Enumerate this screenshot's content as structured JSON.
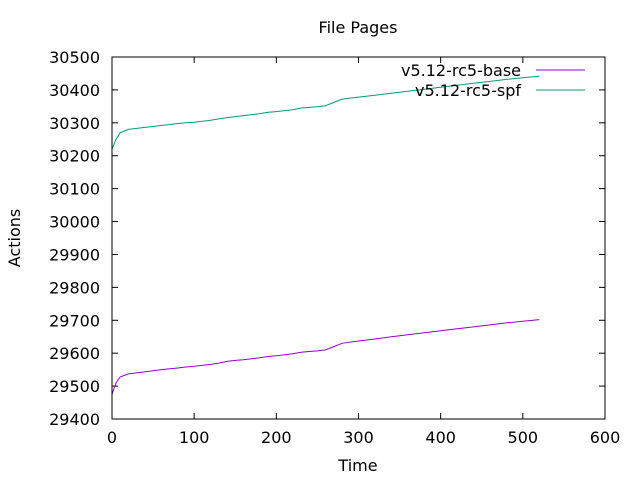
{
  "chart_data": {
    "type": "line",
    "title": "File Pages",
    "xlabel": "Time",
    "ylabel": "Actions",
    "xlim": [
      0,
      600
    ],
    "ylim": [
      29400,
      30500
    ],
    "xticks": [
      "0",
      "100",
      "200",
      "300",
      "400",
      "500",
      "600"
    ],
    "yticks": [
      "29400",
      "29500",
      "29600",
      "29700",
      "29800",
      "29900",
      "30000",
      "30100",
      "30200",
      "30300",
      "30400",
      "30500"
    ],
    "grid": false,
    "legend_position": "top-right",
    "series": [
      {
        "name": "v5.12-rc5-base",
        "color": "#9400d3",
        "x": [
          0,
          5,
          10,
          20,
          40,
          60,
          80,
          90,
          100,
          110,
          120,
          130,
          140,
          150,
          160,
          170,
          180,
          190,
          200,
          210,
          220,
          230,
          240,
          250,
          260,
          270,
          280,
          300,
          320,
          340,
          360,
          380,
          400,
          420,
          440,
          460,
          480,
          500,
          520
        ],
        "y": [
          29475,
          29510,
          29528,
          29537,
          29543,
          29550,
          29555,
          29558,
          29560,
          29563,
          29566,
          29570,
          29575,
          29578,
          29580,
          29583,
          29586,
          29590,
          29592,
          29595,
          29598,
          29603,
          29605,
          29607,
          29610,
          29620,
          29630,
          29637,
          29643,
          29650,
          29656,
          29662,
          29668,
          29674,
          29680,
          29686,
          29692,
          29697,
          29702
        ]
      },
      {
        "name": "v5.12-rc5-spf",
        "color": "#009e73",
        "x": [
          0,
          5,
          10,
          20,
          40,
          60,
          80,
          90,
          100,
          110,
          120,
          130,
          140,
          150,
          160,
          170,
          180,
          190,
          200,
          210,
          220,
          230,
          240,
          250,
          260,
          270,
          280,
          300,
          320,
          340,
          360,
          380,
          400,
          420,
          440,
          460,
          480,
          500,
          520
        ],
        "y": [
          30220,
          30250,
          30270,
          30280,
          30286,
          30292,
          30298,
          30300,
          30302,
          30305,
          30308,
          30312,
          30316,
          30319,
          30322,
          30325,
          30328,
          30332,
          30334,
          30337,
          30340,
          30345,
          30347,
          30349,
          30352,
          30362,
          30372,
          30378,
          30384,
          30390,
          30396,
          30402,
          30408,
          30414,
          30420,
          30426,
          30432,
          30437,
          30442
        ]
      }
    ]
  }
}
